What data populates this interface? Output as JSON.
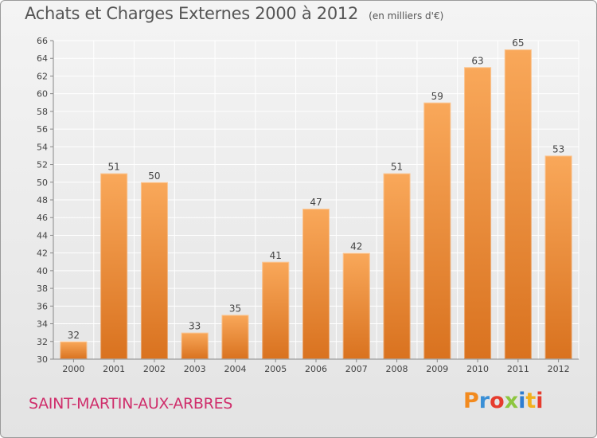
{
  "header": {
    "title": "Achats et Charges Externes 2000 à 2012",
    "unit": "(en milliers d'€)"
  },
  "footer": {
    "city": "SAINT-MARTIN-AUX-ARBRES",
    "brand": "Proxiti",
    "brand_colors": [
      "#f28a1e",
      "#3a8fd6",
      "#e63c2e",
      "#8dc63f",
      "#2e7dd1",
      "#f2b01e",
      "#e63c2e"
    ]
  },
  "colors": {
    "bar_light": "#f9a85a",
    "bar_dark": "#d9721f",
    "grid": "#ffffff",
    "axis_text": "#444444"
  },
  "chart_data": {
    "type": "bar",
    "categories": [
      "2000",
      "2001",
      "2002",
      "2003",
      "2004",
      "2005",
      "2006",
      "2007",
      "2008",
      "2009",
      "2010",
      "2011",
      "2012"
    ],
    "values": [
      32,
      51,
      50,
      33,
      35,
      41,
      47,
      42,
      51,
      59,
      63,
      65,
      53
    ],
    "ylim": [
      30,
      66
    ],
    "yticks": [
      30,
      32,
      34,
      36,
      38,
      40,
      42,
      44,
      46,
      48,
      50,
      52,
      54,
      56,
      58,
      60,
      62,
      64,
      66
    ],
    "grid": true,
    "title": "Achats et Charges Externes 2000 à 2012",
    "xlabel": "",
    "ylabel": ""
  }
}
